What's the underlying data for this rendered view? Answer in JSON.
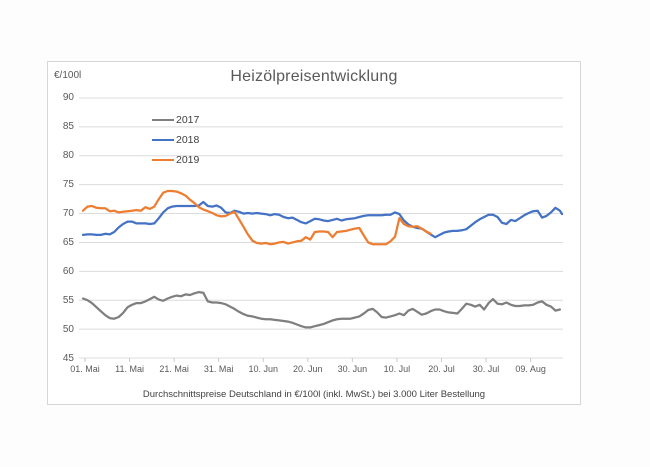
{
  "window": {
    "background": "#fdfdfd",
    "card_background": "#ffffff",
    "card_border": "#d6d6d6"
  },
  "chart_data": {
    "type": "line",
    "title": "Heizölpreisentwicklung",
    "ylabel": "€/100l",
    "footnote": "Durchschnittspreise Deutschland in €/100l (inkl. MwSt.) bei 3.000 Liter Bestellung",
    "x_tick_labels": [
      "01. Mai",
      "11. Mai",
      "21. Mai",
      "31. Mai",
      "10. Jun",
      "20. Jun",
      "30. Jun",
      "10. Jul",
      "20. Jul",
      "30. Jul",
      "09. Aug"
    ],
    "y_ticks": [
      90,
      85,
      80,
      75,
      70,
      65,
      60,
      55,
      50,
      45
    ],
    "ylim": [
      45,
      90
    ],
    "x_unit": "days since 01. Mai",
    "x_range_days": [
      0,
      107.5
    ],
    "grid": "horizontal",
    "grid_color": "#dcdcdc",
    "tick_color": "#c9c9c9",
    "axis_text_color": "#595959",
    "title_color": "#595959",
    "footnote_color": "#404040",
    "legend_position": "upper-left-inside",
    "series": [
      {
        "name": "2017",
        "color": "#7f7f7f",
        "points": [
          [
            0,
            55.3
          ],
          [
            1,
            55.0
          ],
          [
            2,
            54.5
          ],
          [
            3,
            53.8
          ],
          [
            4,
            53.1
          ],
          [
            5,
            52.4
          ],
          [
            6,
            51.9
          ],
          [
            7,
            51.8
          ],
          [
            8,
            52.1
          ],
          [
            9,
            52.8
          ],
          [
            10,
            53.8
          ],
          [
            11,
            54.2
          ],
          [
            12,
            54.5
          ],
          [
            13,
            54.5
          ],
          [
            14,
            54.8
          ],
          [
            15,
            55.2
          ],
          [
            16,
            55.6
          ],
          [
            17,
            55.1
          ],
          [
            18,
            54.9
          ],
          [
            19,
            55.3
          ],
          [
            20,
            55.6
          ],
          [
            21,
            55.8
          ],
          [
            22,
            55.7
          ],
          [
            23,
            56.0
          ],
          [
            24,
            55.9
          ],
          [
            25,
            56.2
          ],
          [
            26,
            56.4
          ],
          [
            27,
            56.3
          ],
          [
            28,
            54.8
          ],
          [
            29,
            54.6
          ],
          [
            30,
            54.6
          ],
          [
            31,
            54.5
          ],
          [
            32,
            54.3
          ],
          [
            33,
            53.9
          ],
          [
            34,
            53.5
          ],
          [
            35,
            53.0
          ],
          [
            36,
            52.6
          ],
          [
            37,
            52.3
          ],
          [
            38,
            52.2
          ],
          [
            39,
            52.0
          ],
          [
            40,
            51.8
          ],
          [
            41,
            51.7
          ],
          [
            42,
            51.7
          ],
          [
            43,
            51.6
          ],
          [
            44,
            51.5
          ],
          [
            45,
            51.4
          ],
          [
            46,
            51.3
          ],
          [
            47,
            51.1
          ],
          [
            48,
            50.8
          ],
          [
            49,
            50.5
          ],
          [
            50,
            50.3
          ],
          [
            51,
            50.3
          ],
          [
            52,
            50.5
          ],
          [
            53,
            50.7
          ],
          [
            54,
            50.9
          ],
          [
            55,
            51.2
          ],
          [
            56,
            51.5
          ],
          [
            57,
            51.7
          ],
          [
            58,
            51.8
          ],
          [
            59,
            51.8
          ],
          [
            60,
            51.8
          ],
          [
            61,
            52.0
          ],
          [
            62,
            52.2
          ],
          [
            63,
            52.7
          ],
          [
            64,
            53.3
          ],
          [
            65,
            53.5
          ],
          [
            66,
            52.9
          ],
          [
            67,
            52.1
          ],
          [
            68,
            52.0
          ],
          [
            69,
            52.2
          ],
          [
            70,
            52.4
          ],
          [
            71,
            52.7
          ],
          [
            72,
            52.4
          ],
          [
            73,
            53.2
          ],
          [
            74,
            53.5
          ],
          [
            75,
            53.0
          ],
          [
            76,
            52.5
          ],
          [
            77,
            52.7
          ],
          [
            78,
            53.1
          ],
          [
            79,
            53.4
          ],
          [
            80,
            53.4
          ],
          [
            81,
            53.1
          ],
          [
            82,
            52.9
          ],
          [
            83,
            52.8
          ],
          [
            84,
            52.7
          ],
          [
            85,
            53.5
          ],
          [
            86,
            54.4
          ],
          [
            87,
            54.2
          ],
          [
            88,
            53.9
          ],
          [
            89,
            54.2
          ],
          [
            90,
            53.4
          ],
          [
            91,
            54.5
          ],
          [
            92,
            55.2
          ],
          [
            93,
            54.4
          ],
          [
            94,
            54.3
          ],
          [
            95,
            54.6
          ],
          [
            96,
            54.2
          ],
          [
            97,
            54.0
          ],
          [
            98,
            54.0
          ],
          [
            99,
            54.1
          ],
          [
            100,
            54.1
          ],
          [
            101,
            54.2
          ],
          [
            102,
            54.6
          ],
          [
            103,
            54.8
          ],
          [
            104,
            54.2
          ],
          [
            105,
            53.9
          ],
          [
            106,
            53.2
          ],
          [
            107,
            53.4
          ]
        ]
      },
      {
        "name": "2018",
        "color": "#4472c4",
        "points": [
          [
            0,
            66.3
          ],
          [
            1,
            66.4
          ],
          [
            2,
            66.4
          ],
          [
            3,
            66.3
          ],
          [
            4,
            66.3
          ],
          [
            5,
            66.5
          ],
          [
            6,
            66.4
          ],
          [
            7,
            66.8
          ],
          [
            8,
            67.6
          ],
          [
            9,
            68.2
          ],
          [
            10,
            68.6
          ],
          [
            11,
            68.6
          ],
          [
            12,
            68.3
          ],
          [
            13,
            68.3
          ],
          [
            14,
            68.3
          ],
          [
            15,
            68.2
          ],
          [
            16,
            68.3
          ],
          [
            17,
            69.2
          ],
          [
            18,
            70.2
          ],
          [
            19,
            70.9
          ],
          [
            20,
            71.2
          ],
          [
            21,
            71.3
          ],
          [
            22,
            71.3
          ],
          [
            23,
            71.3
          ],
          [
            24,
            71.3
          ],
          [
            25,
            71.3
          ],
          [
            26,
            71.4
          ],
          [
            27,
            72.0
          ],
          [
            28,
            71.3
          ],
          [
            29,
            71.2
          ],
          [
            30,
            71.4
          ],
          [
            31,
            71.0
          ],
          [
            32,
            70.2
          ],
          [
            33,
            70.1
          ],
          [
            34,
            70.5
          ],
          [
            35,
            70.3
          ],
          [
            36,
            70.0
          ],
          [
            37,
            70.1
          ],
          [
            38,
            70.0
          ],
          [
            39,
            70.1
          ],
          [
            40,
            70.0
          ],
          [
            41,
            69.9
          ],
          [
            42,
            69.7
          ],
          [
            43,
            69.9
          ],
          [
            44,
            69.8
          ],
          [
            45,
            69.4
          ],
          [
            46,
            69.2
          ],
          [
            47,
            69.3
          ],
          [
            48,
            68.9
          ],
          [
            49,
            68.5
          ],
          [
            50,
            68.3
          ],
          [
            51,
            68.7
          ],
          [
            52,
            69.1
          ],
          [
            53,
            69.0
          ],
          [
            54,
            68.8
          ],
          [
            55,
            68.7
          ],
          [
            56,
            68.9
          ],
          [
            57,
            69.1
          ],
          [
            58,
            68.8
          ],
          [
            59,
            69.0
          ],
          [
            60,
            69.1
          ],
          [
            61,
            69.2
          ],
          [
            62,
            69.4
          ],
          [
            63,
            69.6
          ],
          [
            64,
            69.7
          ],
          [
            65,
            69.7
          ],
          [
            66,
            69.7
          ],
          [
            67,
            69.7
          ],
          [
            68,
            69.8
          ],
          [
            69,
            69.8
          ],
          [
            70,
            70.2
          ],
          [
            71,
            69.9
          ],
          [
            72,
            68.8
          ],
          [
            73,
            68.1
          ],
          [
            74,
            67.7
          ],
          [
            75,
            67.5
          ],
          [
            76,
            67.4
          ],
          [
            77,
            66.9
          ],
          [
            78,
            66.4
          ],
          [
            79,
            65.9
          ],
          [
            80,
            66.3
          ],
          [
            81,
            66.7
          ],
          [
            82,
            66.9
          ],
          [
            83,
            67.0
          ],
          [
            84,
            67.0
          ],
          [
            85,
            67.1
          ],
          [
            86,
            67.3
          ],
          [
            87,
            67.9
          ],
          [
            88,
            68.5
          ],
          [
            89,
            69.0
          ],
          [
            90,
            69.4
          ],
          [
            91,
            69.8
          ],
          [
            92,
            69.8
          ],
          [
            93,
            69.4
          ],
          [
            94,
            68.4
          ],
          [
            95,
            68.2
          ],
          [
            96,
            68.9
          ],
          [
            97,
            68.7
          ],
          [
            98,
            69.2
          ],
          [
            99,
            69.7
          ],
          [
            100,
            70.1
          ],
          [
            101,
            70.4
          ],
          [
            102,
            70.5
          ],
          [
            103,
            69.3
          ],
          [
            104,
            69.6
          ],
          [
            105,
            70.2
          ],
          [
            106,
            71.0
          ],
          [
            107,
            70.5
          ],
          [
            107.5,
            69.9
          ]
        ]
      },
      {
        "name": "2019",
        "color": "#ed7d31",
        "points": [
          [
            0,
            70.5
          ],
          [
            1,
            71.2
          ],
          [
            2,
            71.3
          ],
          [
            3,
            71.0
          ],
          [
            4,
            70.9
          ],
          [
            5,
            70.9
          ],
          [
            6,
            70.4
          ],
          [
            7,
            70.5
          ],
          [
            8,
            70.2
          ],
          [
            9,
            70.3
          ],
          [
            10,
            70.4
          ],
          [
            11,
            70.5
          ],
          [
            12,
            70.6
          ],
          [
            13,
            70.5
          ],
          [
            14,
            71.1
          ],
          [
            15,
            70.8
          ],
          [
            16,
            71.2
          ],
          [
            17,
            72.5
          ],
          [
            18,
            73.6
          ],
          [
            19,
            73.9
          ],
          [
            20,
            73.9
          ],
          [
            21,
            73.8
          ],
          [
            22,
            73.5
          ],
          [
            23,
            73.1
          ],
          [
            24,
            72.4
          ],
          [
            25,
            71.8
          ],
          [
            26,
            71.1
          ],
          [
            27,
            70.7
          ],
          [
            28,
            70.4
          ],
          [
            29,
            70.1
          ],
          [
            30,
            69.7
          ],
          [
            31,
            69.5
          ],
          [
            32,
            69.6
          ],
          [
            33,
            70.0
          ],
          [
            34,
            70.3
          ],
          [
            35,
            69.0
          ],
          [
            36,
            67.7
          ],
          [
            37,
            66.4
          ],
          [
            38,
            65.3
          ],
          [
            39,
            64.9
          ],
          [
            40,
            64.8
          ],
          [
            41,
            64.9
          ],
          [
            42,
            64.7
          ],
          [
            43,
            64.8
          ],
          [
            44,
            65.0
          ],
          [
            45,
            65.1
          ],
          [
            46,
            64.8
          ],
          [
            47,
            65.0
          ],
          [
            48,
            65.2
          ],
          [
            49,
            65.3
          ],
          [
            50,
            65.9
          ],
          [
            51,
            65.5
          ],
          [
            52,
            66.8
          ],
          [
            53,
            66.9
          ],
          [
            54,
            66.9
          ],
          [
            55,
            66.8
          ],
          [
            56,
            65.9
          ],
          [
            57,
            66.8
          ],
          [
            58,
            66.9
          ],
          [
            59,
            67.0
          ],
          [
            60,
            67.2
          ],
          [
            61,
            67.4
          ],
          [
            62,
            67.5
          ],
          [
            63,
            66.2
          ],
          [
            64,
            65.0
          ],
          [
            65,
            64.7
          ],
          [
            66,
            64.7
          ],
          [
            67,
            64.7
          ],
          [
            68,
            64.7
          ],
          [
            69,
            65.2
          ],
          [
            70,
            66.0
          ],
          [
            71,
            69.2
          ],
          [
            72,
            68.2
          ],
          [
            73,
            67.8
          ],
          [
            74,
            67.7
          ],
          [
            75,
            67.8
          ],
          [
            76,
            67.4
          ],
          [
            77,
            66.9
          ],
          [
            78,
            66.5
          ]
        ]
      }
    ]
  }
}
